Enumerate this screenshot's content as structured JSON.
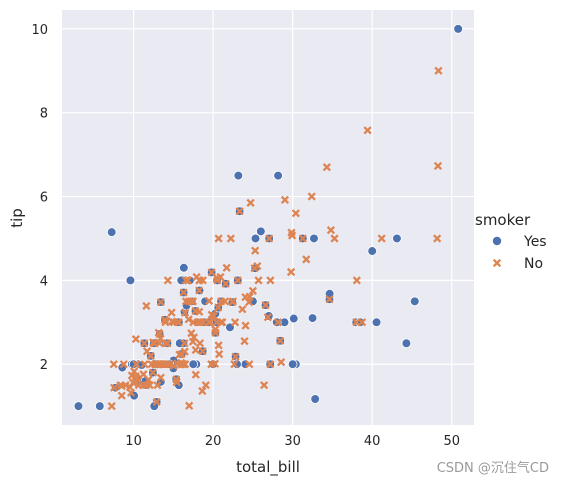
{
  "chart_data": {
    "type": "scatter",
    "xlabel": "total_bill",
    "ylabel": "tip",
    "xlim": [
      1.0,
      52.8
    ],
    "ylim": [
      0.55,
      10.45
    ],
    "xticks": [
      10,
      20,
      30,
      40,
      50
    ],
    "yticks": [
      2,
      4,
      6,
      8,
      10
    ],
    "grid": true,
    "legend": {
      "title": "smoker",
      "placement": "right"
    },
    "series": [
      {
        "name": "Yes",
        "color": "#4c72b0",
        "marker": "circle",
        "points": [
          [
            3.07,
            1.0
          ],
          [
            5.75,
            1.0
          ],
          [
            7.25,
            5.15
          ],
          [
            7.74,
            1.44
          ],
          [
            8.58,
            1.92
          ],
          [
            9.6,
            4.0
          ],
          [
            10.07,
            1.25
          ],
          [
            10.34,
            2.0
          ],
          [
            10.59,
            1.61
          ],
          [
            10.63,
            2.0
          ],
          [
            11.02,
            1.98
          ],
          [
            11.35,
            2.5
          ],
          [
            11.59,
            1.5
          ],
          [
            12.16,
            2.2
          ],
          [
            12.43,
            1.8
          ],
          [
            12.54,
            2.5
          ],
          [
            12.69,
            1.05
          ],
          [
            12.74,
            2.01
          ],
          [
            12.9,
            1.1
          ],
          [
            13.28,
            2.72
          ],
          [
            13.42,
            3.48
          ],
          [
            13.42,
            1.58
          ],
          [
            13.81,
            2.0
          ],
          [
            13.94,
            3.06
          ],
          [
            14.07,
            2.5
          ],
          [
            14.26,
            2.5
          ],
          [
            15.01,
            2.09
          ],
          [
            15.36,
            1.64
          ],
          [
            15.69,
            1.5
          ],
          [
            15.69,
            3.0
          ],
          [
            16.04,
            2.24
          ],
          [
            16.27,
            2.5
          ],
          [
            16.29,
            3.71
          ],
          [
            16.32,
            4.3
          ],
          [
            16.4,
            3.25
          ],
          [
            16.58,
            4.0
          ],
          [
            16.66,
            3.4
          ],
          [
            17.07,
            4.0
          ],
          [
            17.31,
            3.5
          ],
          [
            17.78,
            3.27
          ],
          [
            17.89,
            2.0
          ],
          [
            18.24,
            3.76
          ],
          [
            18.29,
            3.76
          ],
          [
            18.69,
            2.31
          ],
          [
            19.44,
            3.0
          ],
          [
            19.81,
            4.19
          ],
          [
            20.08,
            3.15
          ],
          [
            20.29,
            2.75
          ],
          [
            20.29,
            3.21
          ],
          [
            20.45,
            3.0
          ],
          [
            20.5,
            4.0
          ],
          [
            21.58,
            3.92
          ],
          [
            22.82,
            2.18
          ],
          [
            22.42,
            3.48
          ],
          [
            23.33,
            5.65
          ],
          [
            22.12,
            2.88
          ],
          [
            23.1,
            4.0
          ],
          [
            24.06,
            2.0
          ],
          [
            25.29,
            4.29
          ],
          [
            25.33,
            5.0
          ],
          [
            26.0,
            5.17
          ],
          [
            26.59,
            3.41
          ],
          [
            27.05,
            5.0
          ],
          [
            27.18,
            2.0
          ],
          [
            28.17,
            6.5
          ],
          [
            28.44,
            2.56
          ],
          [
            28.97,
            3.0
          ],
          [
            30.14,
            3.09
          ],
          [
            30.4,
            2.0
          ],
          [
            31.27,
            5.0
          ],
          [
            32.68,
            5.0
          ],
          [
            32.83,
            1.17
          ],
          [
            34.63,
            3.55
          ],
          [
            34.65,
            3.68
          ],
          [
            40.55,
            3.0
          ],
          [
            43.11,
            5.0
          ],
          [
            44.3,
            2.5
          ],
          [
            45.35,
            3.5
          ],
          [
            50.81,
            10.0
          ],
          [
            23.17,
            6.5
          ],
          [
            13.0,
            2.0
          ],
          [
            12.6,
            1.0
          ],
          [
            15.0,
            1.9
          ],
          [
            16.0,
            4.0
          ],
          [
            18.78,
            3.0
          ],
          [
            19.0,
            3.5
          ],
          [
            17.5,
            2.0
          ],
          [
            21.0,
            3.5
          ],
          [
            23.0,
            2.0
          ],
          [
            25.0,
            3.5
          ],
          [
            28.0,
            3.0
          ],
          [
            32.5,
            3.1
          ],
          [
            38.0,
            3.0
          ],
          [
            38.5,
            3.0
          ],
          [
            40.0,
            4.7
          ],
          [
            30.0,
            2.0
          ],
          [
            27.0,
            3.15
          ],
          [
            20.65,
            3.35
          ],
          [
            14.5,
            2.0
          ],
          [
            11.5,
            1.6
          ],
          [
            9.78,
            2.0
          ],
          [
            10.0,
            2.0
          ],
          [
            13.5,
            2.0
          ],
          [
            15.8,
            2.5
          ],
          [
            18.0,
            3.0
          ],
          [
            20.0,
            2.0
          ]
        ]
      },
      {
        "name": "No",
        "color": "#dd8452",
        "marker": "x",
        "points": [
          [
            16.99,
            1.01
          ],
          [
            10.34,
            1.66
          ],
          [
            21.01,
            3.5
          ],
          [
            23.68,
            3.31
          ],
          [
            24.59,
            3.61
          ],
          [
            25.29,
            4.71
          ],
          [
            8.77,
            2.0
          ],
          [
            26.88,
            3.12
          ],
          [
            15.04,
            1.96
          ],
          [
            14.78,
            3.23
          ],
          [
            10.27,
            1.71
          ],
          [
            35.26,
            5.0
          ],
          [
            15.42,
            1.57
          ],
          [
            18.43,
            3.0
          ],
          [
            14.83,
            3.02
          ],
          [
            21.58,
            3.92
          ],
          [
            10.33,
            1.67
          ],
          [
            16.29,
            3.71
          ],
          [
            16.97,
            3.5
          ],
          [
            20.65,
            3.35
          ],
          [
            17.92,
            4.08
          ],
          [
            20.29,
            2.75
          ],
          [
            15.77,
            2.23
          ],
          [
            39.42,
            7.58
          ],
          [
            19.82,
            3.18
          ],
          [
            17.81,
            2.34
          ],
          [
            13.37,
            2.0
          ],
          [
            12.69,
            2.0
          ],
          [
            21.7,
            4.3
          ],
          [
            19.65,
            3.0
          ],
          [
            9.55,
            1.45
          ],
          [
            18.35,
            2.5
          ],
          [
            15.06,
            3.0
          ],
          [
            20.69,
            2.45
          ],
          [
            17.78,
            3.27
          ],
          [
            24.06,
            3.6
          ],
          [
            16.31,
            2.0
          ],
          [
            16.93,
            3.07
          ],
          [
            18.69,
            2.31
          ],
          [
            31.27,
            5.0
          ],
          [
            16.04,
            2.24
          ],
          [
            17.46,
            2.54
          ],
          [
            13.94,
            3.06
          ],
          [
            9.68,
            1.32
          ],
          [
            30.4,
            5.6
          ],
          [
            18.29,
            3.0
          ],
          [
            22.23,
            5.0
          ],
          [
            32.4,
            6.0
          ],
          [
            28.55,
            2.05
          ],
          [
            18.04,
            3.0
          ],
          [
            12.54,
            2.5
          ],
          [
            10.29,
            2.6
          ],
          [
            34.81,
            5.2
          ],
          [
            9.94,
            1.56
          ],
          [
            25.56,
            4.34
          ],
          [
            19.49,
            3.51
          ],
          [
            38.07,
            4.0
          ],
          [
            23.95,
            2.55
          ],
          [
            25.71,
            4.0
          ],
          [
            17.31,
            3.5
          ],
          [
            29.93,
            5.07
          ],
          [
            10.65,
            1.5
          ],
          [
            12.43,
            1.8
          ],
          [
            24.08,
            2.92
          ],
          [
            11.69,
            2.31
          ],
          [
            13.42,
            1.68
          ],
          [
            14.26,
            2.5
          ],
          [
            15.95,
            2.0
          ],
          [
            12.48,
            2.52
          ],
          [
            29.8,
            4.2
          ],
          [
            8.52,
            1.48
          ],
          [
            14.52,
            2.0
          ],
          [
            11.38,
            2.0
          ],
          [
            22.82,
            2.18
          ],
          [
            19.08,
            1.5
          ],
          [
            20.27,
            2.83
          ],
          [
            11.17,
            1.5
          ],
          [
            12.26,
            2.0
          ],
          [
            18.26,
            3.25
          ],
          [
            8.51,
            1.25
          ],
          [
            10.33,
            2.0
          ],
          [
            14.15,
            2.0
          ],
          [
            16.0,
            2.0
          ],
          [
            13.16,
            2.75
          ],
          [
            17.47,
            3.5
          ],
          [
            34.3,
            6.7
          ],
          [
            41.19,
            5.0
          ],
          [
            27.05,
            5.0
          ],
          [
            16.43,
            2.3
          ],
          [
            8.35,
            1.5
          ],
          [
            18.64,
            1.36
          ],
          [
            11.87,
            1.63
          ],
          [
            9.78,
            1.73
          ],
          [
            7.51,
            2.0
          ],
          [
            14.07,
            2.5
          ],
          [
            13.13,
            2.0
          ],
          [
            17.26,
            2.74
          ],
          [
            24.55,
            2.0
          ],
          [
            19.77,
            2.0
          ],
          [
            29.85,
            5.14
          ],
          [
            48.17,
            5.0
          ],
          [
            25.0,
            3.75
          ],
          [
            13.39,
            2.61
          ],
          [
            16.49,
            2.0
          ],
          [
            21.5,
            3.5
          ],
          [
            12.66,
            2.5
          ],
          [
            16.21,
            2.0
          ],
          [
            13.81,
            2.0
          ],
          [
            24.52,
            3.48
          ],
          [
            20.76,
            2.24
          ],
          [
            31.71,
            4.5
          ],
          [
            10.59,
            1.61
          ],
          [
            16.47,
            3.23
          ],
          [
            29.03,
            5.92
          ],
          [
            27.18,
            2.0
          ],
          [
            22.67,
            2.0
          ],
          [
            17.82,
            1.75
          ],
          [
            18.78,
            3.0
          ],
          [
            48.27,
            6.73
          ],
          [
            48.33,
            9.0
          ],
          [
            26.41,
            1.5
          ],
          [
            7.56,
            1.44
          ],
          [
            20.08,
            3.15
          ],
          [
            15.48,
            2.02
          ],
          [
            16.58,
            4.0
          ],
          [
            23.33,
            5.65
          ],
          [
            22.76,
            3.0
          ],
          [
            12.03,
            1.5
          ],
          [
            20.23,
            2.01
          ],
          [
            15.98,
            2.03
          ],
          [
            11.24,
            1.76
          ],
          [
            13.27,
            2.5
          ],
          [
            28.15,
            3.0
          ],
          [
            13.0,
            2.0
          ],
          [
            18.28,
            4.0
          ],
          [
            22.49,
            3.5
          ],
          [
            15.53,
            3.0
          ],
          [
            19.44,
            3.0
          ],
          [
            20.45,
            3.0
          ],
          [
            13.28,
            2.72
          ],
          [
            15.69,
            3.0
          ],
          [
            11.61,
            3.39
          ],
          [
            10.07,
            1.83
          ],
          [
            34.63,
            3.55
          ],
          [
            16.82,
            4.0
          ],
          [
            21.16,
            3.0
          ],
          [
            22.42,
            3.48
          ],
          [
            20.92,
            4.08
          ],
          [
            15.36,
            1.64
          ],
          [
            20.49,
            4.06
          ],
          [
            25.21,
            4.29
          ],
          [
            18.24,
            3.76
          ],
          [
            14.31,
            4.0
          ],
          [
            14.0,
            3.0
          ],
          [
            7.25,
            1.0
          ],
          [
            38.73,
            3.0
          ],
          [
            17.51,
            3.0
          ],
          [
            13.03,
            2.0
          ],
          [
            18.28,
            4.0
          ],
          [
            12.9,
            1.1
          ],
          [
            19.81,
            4.19
          ],
          [
            28.44,
            2.56
          ],
          [
            15.48,
            2.02
          ],
          [
            16.58,
            3.5
          ],
          [
            21.01,
            3.0
          ],
          [
            11.35,
            2.5
          ],
          [
            12.16,
            2.2
          ],
          [
            13.42,
            3.48
          ],
          [
            23.1,
            4.0
          ],
          [
            17.59,
            2.64
          ],
          [
            20.69,
            5.0
          ],
          [
            24.71,
            5.85
          ],
          [
            13.51,
            2.0
          ],
          [
            18.71,
            4.0
          ],
          [
            12.74,
            2.0
          ],
          [
            13.0,
            1.5
          ],
          [
            16.4,
            2.5
          ],
          [
            20.53,
            4.0
          ],
          [
            16.47,
            3.23
          ],
          [
            26.59,
            3.41
          ],
          [
            38.0,
            3.0
          ],
          [
            27.2,
            4.0
          ],
          [
            9.0,
            1.5
          ],
          [
            11.59,
            1.5
          ]
        ]
      }
    ]
  },
  "watermark": "CSDN @沉住气CD"
}
